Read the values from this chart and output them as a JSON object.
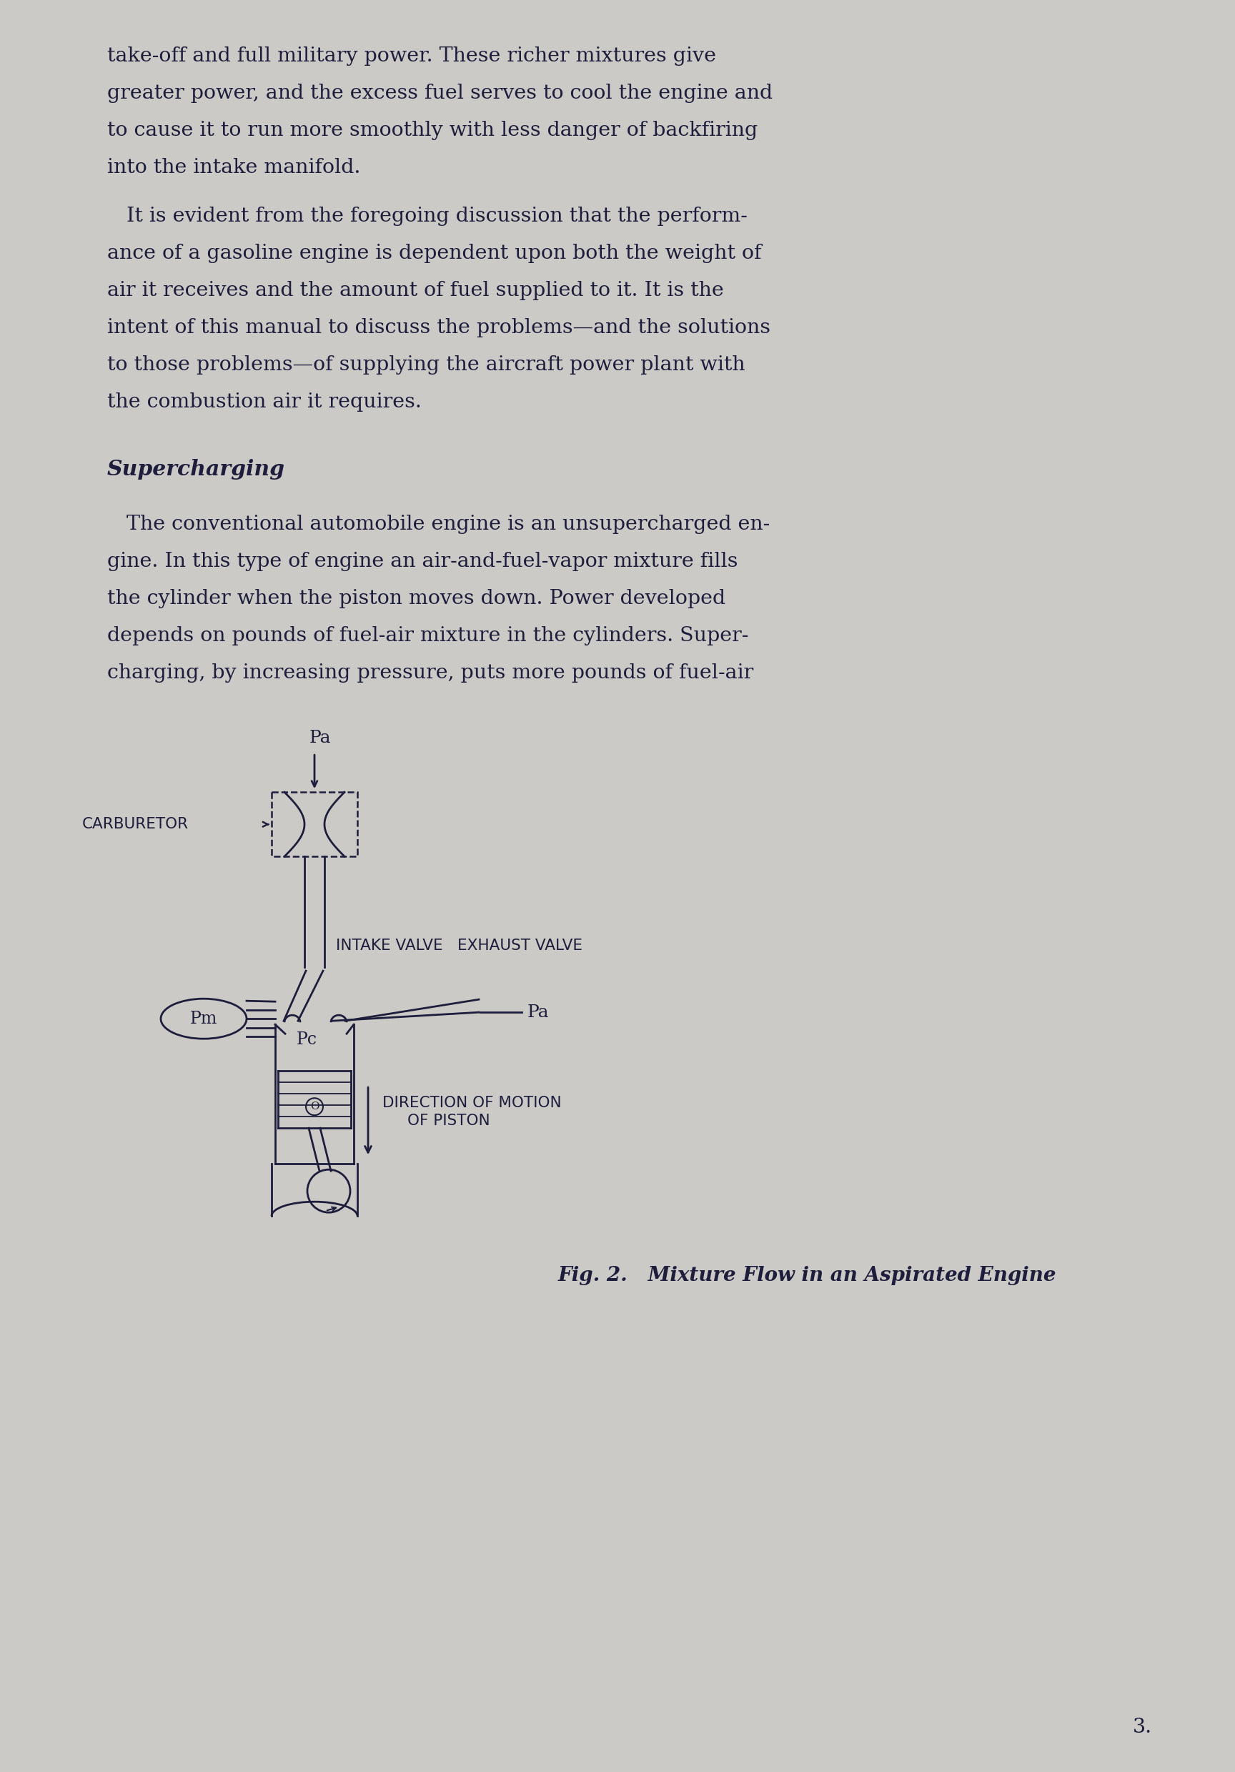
{
  "bg_color": "#cccac6",
  "text_color": "#1e1e3c",
  "page_number": "3.",
  "para1_lines": [
    "take-off and full military power. These richer mixtures give",
    "greater power, and the excess fuel serves to cool the engine and",
    "to cause it to run more smoothly with less danger of backfiring",
    "into the intake manifold."
  ],
  "para2_lines": [
    "   It is evident from the foregoing discussion that the perform-",
    "ance of a gasoline engine is dependent upon both the weight of",
    "air it receives and the amount of fuel supplied to it. It is the",
    "intent of this manual to discuss the problems—and the solutions",
    "to those problems—of supplying the aircraft power plant with",
    "the combustion air it requires."
  ],
  "heading": "Supercharging",
  "para3_lines": [
    "   The conventional automobile engine is an unsupercharged en-",
    "gine. In this type of engine an air-and-fuel-vapor mixture fills",
    "the cylinder when the piston moves down. Power developed",
    "depends on pounds of fuel-air mixture in the cylinders. Super-",
    "charging, by increasing pressure, puts more pounds of fuel-air"
  ],
  "fig_caption": "Fig. 2.   Mixture Flow in an Aspirated Engine",
  "lm": 0.082,
  "rm": 0.938,
  "body_fs": 20.5,
  "heading_fs": 21.5,
  "caption_fs": 20.0,
  "diag_label_fs": 15.5,
  "diag_small_fs": 17.0
}
